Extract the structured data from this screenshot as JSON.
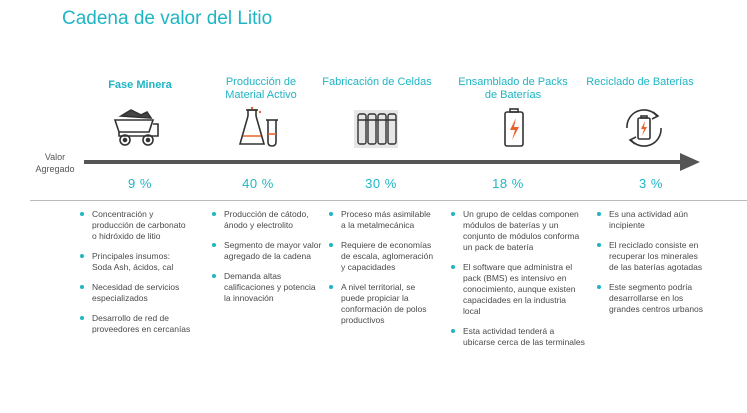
{
  "title": "Cadena de valor del Litio",
  "valor_agregado_label": "Valor\nAgregado",
  "accent_color": "#1fb5c4",
  "arrow_color": "#555555",
  "stages": [
    {
      "name": "Fase Minera",
      "icon": "mining-truck-icon",
      "percent": "9 %",
      "bullets": [
        "Concentración y producción de carbonato o hidróxido de litio",
        "Principales insumos: Soda Ash, ácidos, cal",
        "Necesidad de servicios especializados",
        "Desarrollo de red de proveedores en cercanías"
      ]
    },
    {
      "name": "Producción de Material Activo",
      "icon": "lab-flasks-icon",
      "percent": "40 %",
      "bullets": [
        "Producción de cátodo, ánodo y electrolito",
        "Segmento de mayor valor agregado de la cadena",
        "Demanda altas calificaciones y potencia la innovación"
      ]
    },
    {
      "name": "Fabricación de Celdas",
      "icon": "battery-cells-icon",
      "percent": "30 %",
      "bullets": [
        "Proceso más asimilable a la metalmecánica",
        "Requiere de economías de escala, aglomeración y capacidades",
        "A nivel territorial, se puede propiciar la conformación de polos productivos"
      ]
    },
    {
      "name": "Ensamblado de Packs de Baterías",
      "icon": "battery-charge-icon",
      "percent": "18 %",
      "bullets": [
        "Un grupo de celdas componen módulos de baterías y un conjunto de módulos conforma un pack de batería",
        "El software que administra el pack (BMS) es intensivo en conocimiento, aunque existen capacidades en la industria local",
        "Esta actividad tenderá a ubicarse cerca de las terminales"
      ]
    },
    {
      "name": "Reciclado de Baterías",
      "icon": "battery-recycle-icon",
      "percent": "3 %",
      "bullets": [
        "Es una actividad aún incipiente",
        "El reciclado consiste en recuperar los minerales de las baterías agotadas",
        "Este segmento podría desarrollarse en los grandes centros urbanos"
      ]
    }
  ]
}
